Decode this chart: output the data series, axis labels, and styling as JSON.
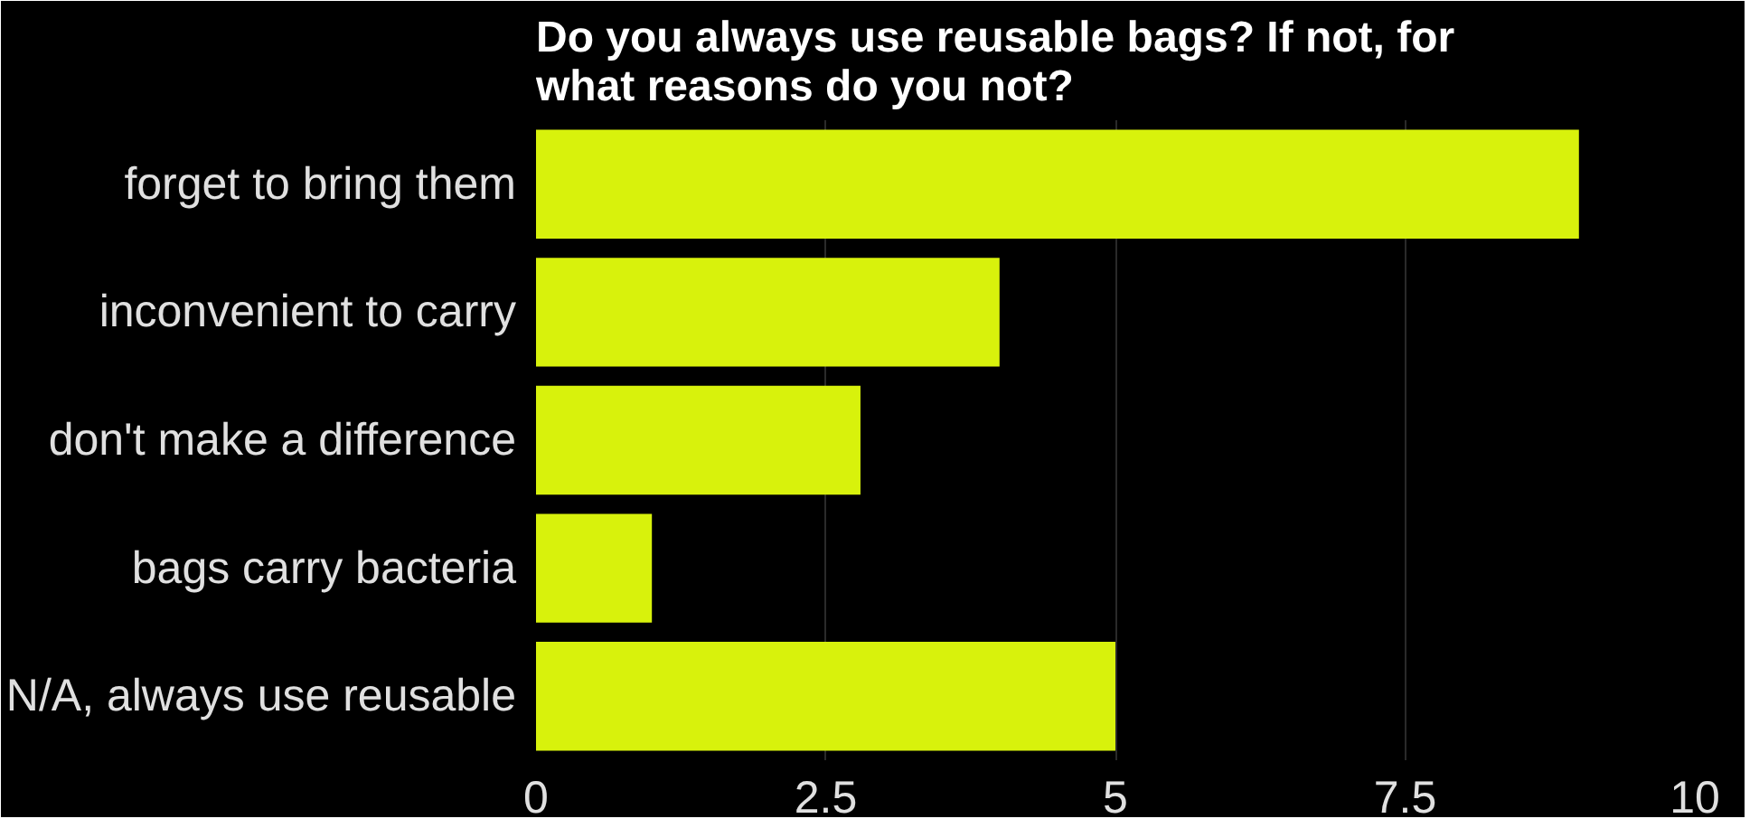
{
  "chart_data": {
    "type": "bar",
    "orientation": "horizontal",
    "title": "Do you always use reusable bags? If not, for what reasons do you not?",
    "categories": [
      "forget to bring them",
      "inconvenient to carry",
      "don't make a difference",
      "bags carry bacteria",
      "N/A, always use reusable"
    ],
    "values": [
      9,
      4,
      2.8,
      1,
      5
    ],
    "color": "#d8f20c",
    "xlim": [
      0,
      10
    ],
    "xticks": [
      0,
      2.5,
      5,
      7.5,
      10
    ],
    "grid": "x"
  }
}
